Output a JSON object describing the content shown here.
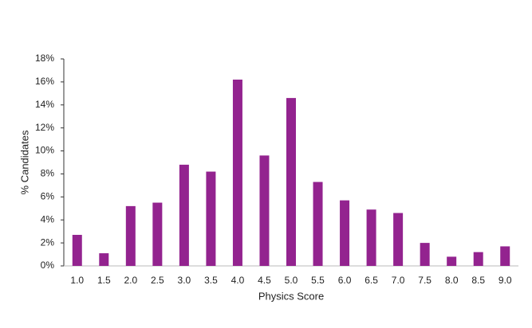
{
  "chart_data": {
    "type": "bar",
    "xlabel": "Physics Score",
    "ylabel": "% Candidates",
    "categories": [
      "1.0",
      "1.5",
      "2.0",
      "2.5",
      "3.0",
      "3.5",
      "4.0",
      "4.5",
      "5.0",
      "5.5",
      "6.0",
      "6.5",
      "7.0",
      "7.5",
      "8.0",
      "8.5",
      "9.0"
    ],
    "values": [
      2.7,
      1.1,
      5.2,
      5.5,
      8.8,
      8.2,
      16.2,
      9.6,
      14.6,
      7.3,
      5.7,
      4.9,
      4.6,
      2.0,
      0.8,
      1.2,
      1.7
    ],
    "color": "#93238f",
    "ylim": [
      0,
      18
    ],
    "yticks": [
      {
        "value": 0,
        "label": "0%"
      },
      {
        "value": 2,
        "label": "2%"
      },
      {
        "value": 4,
        "label": "4%"
      },
      {
        "value": 6,
        "label": "6%"
      },
      {
        "value": 8,
        "label": "8%"
      },
      {
        "value": 10,
        "label": "10%"
      },
      {
        "value": 12,
        "label": "12%"
      },
      {
        "value": 14,
        "label": "14%"
      },
      {
        "value": 16,
        "label": "16%"
      },
      {
        "value": 18,
        "label": "18%"
      }
    ],
    "grid": false
  }
}
